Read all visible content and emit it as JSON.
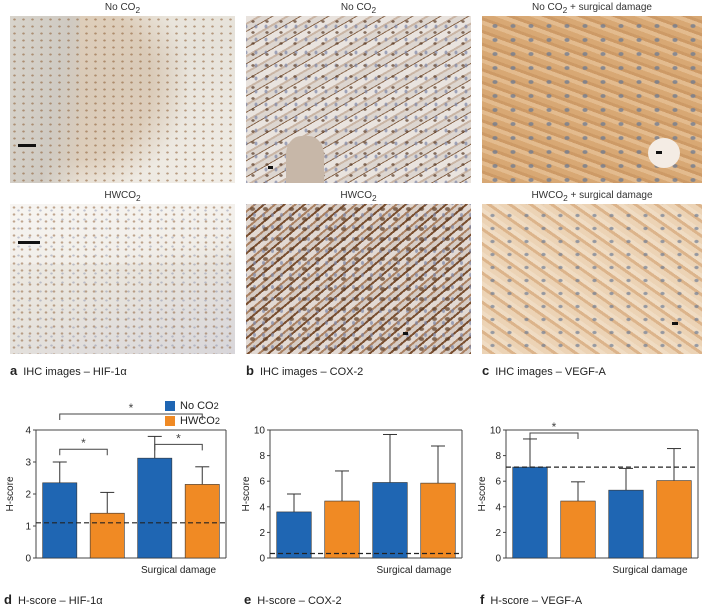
{
  "images": {
    "row1": [
      {
        "title": "No CO",
        "sub": "2",
        "suffix": ""
      },
      {
        "title": "No CO",
        "sub": "2",
        "suffix": ""
      },
      {
        "title": "No CO",
        "sub": "2",
        "suffix": " + surgical damage"
      }
    ],
    "row2": [
      {
        "title": "HWCO",
        "sub": "2",
        "suffix": ""
      },
      {
        "title": "HWCO",
        "sub": "2",
        "suffix": ""
      },
      {
        "title": "HWCO",
        "sub": "2",
        "suffix": " + surgical damage"
      }
    ]
  },
  "panel_labels": {
    "a": {
      "letter": "a",
      "text": "IHC images – HIF-1α"
    },
    "b": {
      "letter": "b",
      "text": "IHC images – COX-2"
    },
    "c": {
      "letter": "c",
      "text": "IHC images – VEGF-A"
    },
    "d": {
      "letter": "d",
      "text": "H-score – HIF-1α"
    },
    "e": {
      "letter": "e",
      "text": "H-score – COX-2"
    },
    "f": {
      "letter": "f",
      "text": "H-score – VEGF-A"
    }
  },
  "colors": {
    "no_co2": "#1f66b3",
    "hwco2": "#f08a24",
    "micro_blue": "#d9dde6",
    "micro_brown": "#c98a4b"
  },
  "legend": {
    "no_co2": "No CO",
    "hwco2": "HWCO",
    "sub": "2"
  },
  "chart_data": [
    {
      "type": "bar",
      "ylabel": "H-score",
      "xgroup_label": "Surgical damage",
      "ylim": [
        0,
        4
      ],
      "yticks": [
        0,
        1,
        2,
        3,
        4
      ],
      "bars": [
        {
          "series": "no_co2",
          "value": 2.35,
          "err": 0.65
        },
        {
          "series": "hwco2",
          "value": 1.4,
          "err": 0.65
        },
        {
          "series": "no_co2",
          "value": 3.12,
          "err": 0.68
        },
        {
          "series": "hwco2",
          "value": 2.3,
          "err": 0.55
        }
      ],
      "reference_line": 1.1,
      "significance": [
        {
          "from": 0,
          "to": 3,
          "label": "*"
        },
        {
          "from": 0,
          "to": 1,
          "label": "*"
        },
        {
          "from": 2,
          "to": 3,
          "label": "*"
        }
      ]
    },
    {
      "type": "bar",
      "ylabel": "H-score",
      "xgroup_label": "Surgical damage",
      "ylim": [
        0,
        10
      ],
      "yticks": [
        0,
        2,
        4,
        6,
        8,
        10
      ],
      "bars": [
        {
          "series": "no_co2",
          "value": 3.6,
          "err": 1.4
        },
        {
          "series": "hwco2",
          "value": 4.45,
          "err": 2.35
        },
        {
          "series": "no_co2",
          "value": 5.9,
          "err": 3.75
        },
        {
          "series": "hwco2",
          "value": 5.85,
          "err": 2.9
        }
      ],
      "reference_line": 0.35,
      "significance": []
    },
    {
      "type": "bar",
      "ylabel": "H-score",
      "xgroup_label": "Surgical damage",
      "ylim": [
        0,
        10
      ],
      "yticks": [
        0,
        2,
        4,
        6,
        8,
        10
      ],
      "bars": [
        {
          "series": "no_co2",
          "value": 7.1,
          "err": 2.2
        },
        {
          "series": "hwco2",
          "value": 4.45,
          "err": 1.5
        },
        {
          "series": "no_co2",
          "value": 5.3,
          "err": 1.7
        },
        {
          "series": "hwco2",
          "value": 6.05,
          "err": 2.5
        }
      ],
      "reference_line": 7.1,
      "significance": [
        {
          "from": 0,
          "to": 1,
          "label": "*"
        }
      ]
    }
  ]
}
